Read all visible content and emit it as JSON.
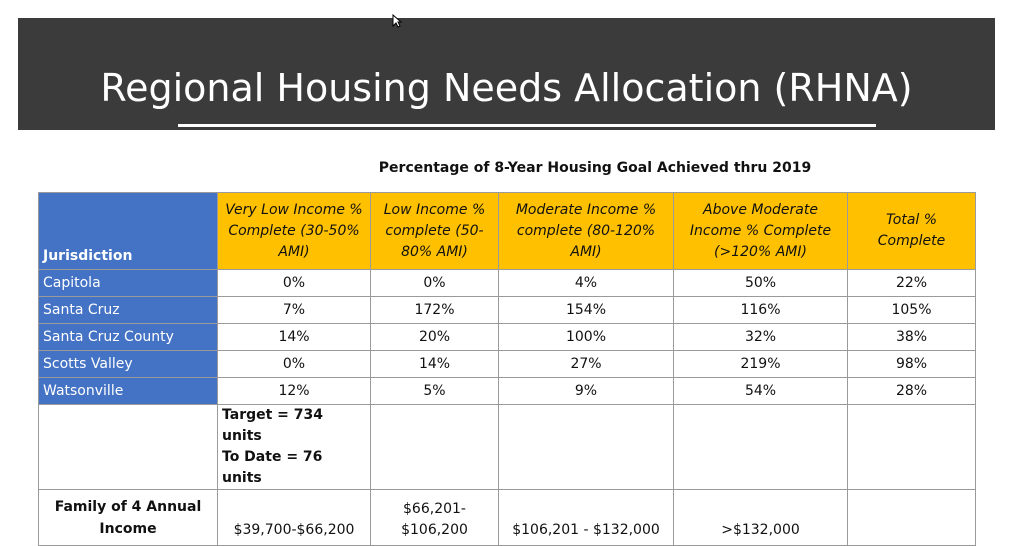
{
  "slide": {
    "title": "Regional Housing Needs Allocation (RHNA)"
  },
  "table": {
    "caption": "Percentage of 8-Year Housing Goal Achieved thru 2019",
    "header": {
      "jurisdiction": "Jurisdiction",
      "very_low": "Very Low Income % Complete (30-50% AMI)",
      "low": "Low Income % complete (50-80% AMI)",
      "moderate": "Moderate Income % complete (80-120% AMI)",
      "above_moderate": "Above Moderate Income % Complete (>120% AMI)",
      "total": "Total % Complete"
    },
    "rows": [
      {
        "jurisdiction": "Capitola",
        "very_low": "0%",
        "low": "0%",
        "moderate": "4%",
        "above_moderate": "50%",
        "total": "22%"
      },
      {
        "jurisdiction": "Santa Cruz",
        "very_low": "7%",
        "low": "172%",
        "moderate": "154%",
        "above_moderate": "116%",
        "total": "105%"
      },
      {
        "jurisdiction": "Santa Cruz County",
        "very_low": "14%",
        "low": "20%",
        "moderate": "100%",
        "above_moderate": "32%",
        "total": "38%"
      },
      {
        "jurisdiction": "Scotts Valley",
        "very_low": "0%",
        "low": "14%",
        "moderate": "27%",
        "above_moderate": "219%",
        "total": "98%"
      },
      {
        "jurisdiction": "Watsonville",
        "very_low": "12%",
        "low": "5%",
        "moderate": "9%",
        "above_moderate": "54%",
        "total": "28%"
      }
    ],
    "note": {
      "target": "Target = 734 units",
      "to_date": "To Date = 76 units"
    },
    "income": {
      "label": "Family of 4 Annual Income",
      "very_low": "$39,700-$66,200",
      "low_line1": "$66,201-",
      "low_line2": "$106,200",
      "moderate": "$106,201 - $132,000",
      "above_moderate": ">$132,000"
    }
  },
  "colors": {
    "header_bar": "#3b3b3b",
    "column_header": "#ffc000",
    "jurisdiction_cell": "#4472c4"
  }
}
